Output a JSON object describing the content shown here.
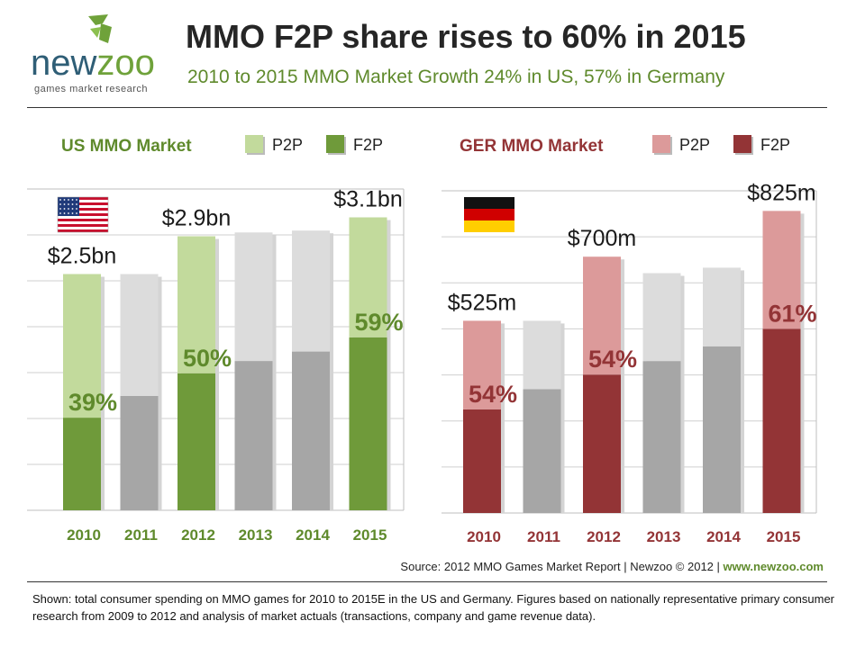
{
  "header": {
    "logo_text_1": "new",
    "logo_text_2": "zoo",
    "logo_tagline": "games market research",
    "title": "MMO F2P share rises to 60% in 2015",
    "subtitle": "2010 to 2015 MMO Market Growth 24% in US, 57% in Germany"
  },
  "colors": {
    "us_f2p": "#6f9a3a",
    "us_p2p": "#c2da9c",
    "ger_f2p": "#933436",
    "ger_p2p": "#dc9a9a",
    "gray_f2p": "#a6a6a6",
    "gray_p2p": "#dcdcdc",
    "us_text": "#5f8a2c",
    "ger_text": "#933436"
  },
  "chart_data": [
    {
      "type": "bar",
      "title": "US MMO Market",
      "legend": [
        "P2P",
        "F2P"
      ],
      "categories": [
        "2010",
        "2011",
        "2012",
        "2013",
        "2014",
        "2015"
      ],
      "series": [
        {
          "name": "F2P",
          "values": [
            0.98,
            1.21,
            1.45,
            1.58,
            1.68,
            1.83
          ]
        },
        {
          "name": "P2P",
          "values": [
            1.52,
            1.29,
            1.45,
            1.36,
            1.28,
            1.27
          ]
        }
      ],
      "ylim": [
        0,
        3.4
      ],
      "grid": true,
      "highlighted": [
        true,
        false,
        true,
        false,
        false,
        true
      ],
      "total_labels": [
        "$2.5bn",
        "",
        "$2.9bn",
        "",
        "",
        "$3.1bn"
      ],
      "share_labels": [
        "39%",
        "",
        "50%",
        "",
        "",
        "59%"
      ],
      "flag": "us-flag-icon"
    },
    {
      "type": "bar",
      "title": "GER MMO Market",
      "legend": [
        "P2P",
        "F2P"
      ],
      "categories": [
        "2010",
        "2011",
        "2012",
        "2013",
        "2014",
        "2015"
      ],
      "series": [
        {
          "name": "F2P",
          "values": [
            283,
            338,
            378,
            415,
            455,
            503
          ]
        },
        {
          "name": "P2P",
          "values": [
            242,
            187,
            322,
            240,
            215,
            322
          ]
        }
      ],
      "ylim": [
        0,
        880
      ],
      "grid": true,
      "highlighted": [
        true,
        false,
        true,
        false,
        false,
        true
      ],
      "total_labels": [
        "$525m",
        "",
        "$700m",
        "",
        "",
        "$825m"
      ],
      "share_labels": [
        "54%",
        "",
        "54%",
        "",
        "",
        "61%"
      ],
      "flag": "germany-flag-icon"
    }
  ],
  "footer": {
    "source": "Source: 2012 MMO Games Market Report | Newzoo © 2012 | ",
    "source_link": "www.newzoo.com",
    "note": "Shown: total consumer spending on MMO games for 2010 to 2015E in the US and Germany. Figures based on nationally representative primary consumer research from 2009 to 2012 and analysis of market actuals (transactions, company and game revenue data)."
  }
}
